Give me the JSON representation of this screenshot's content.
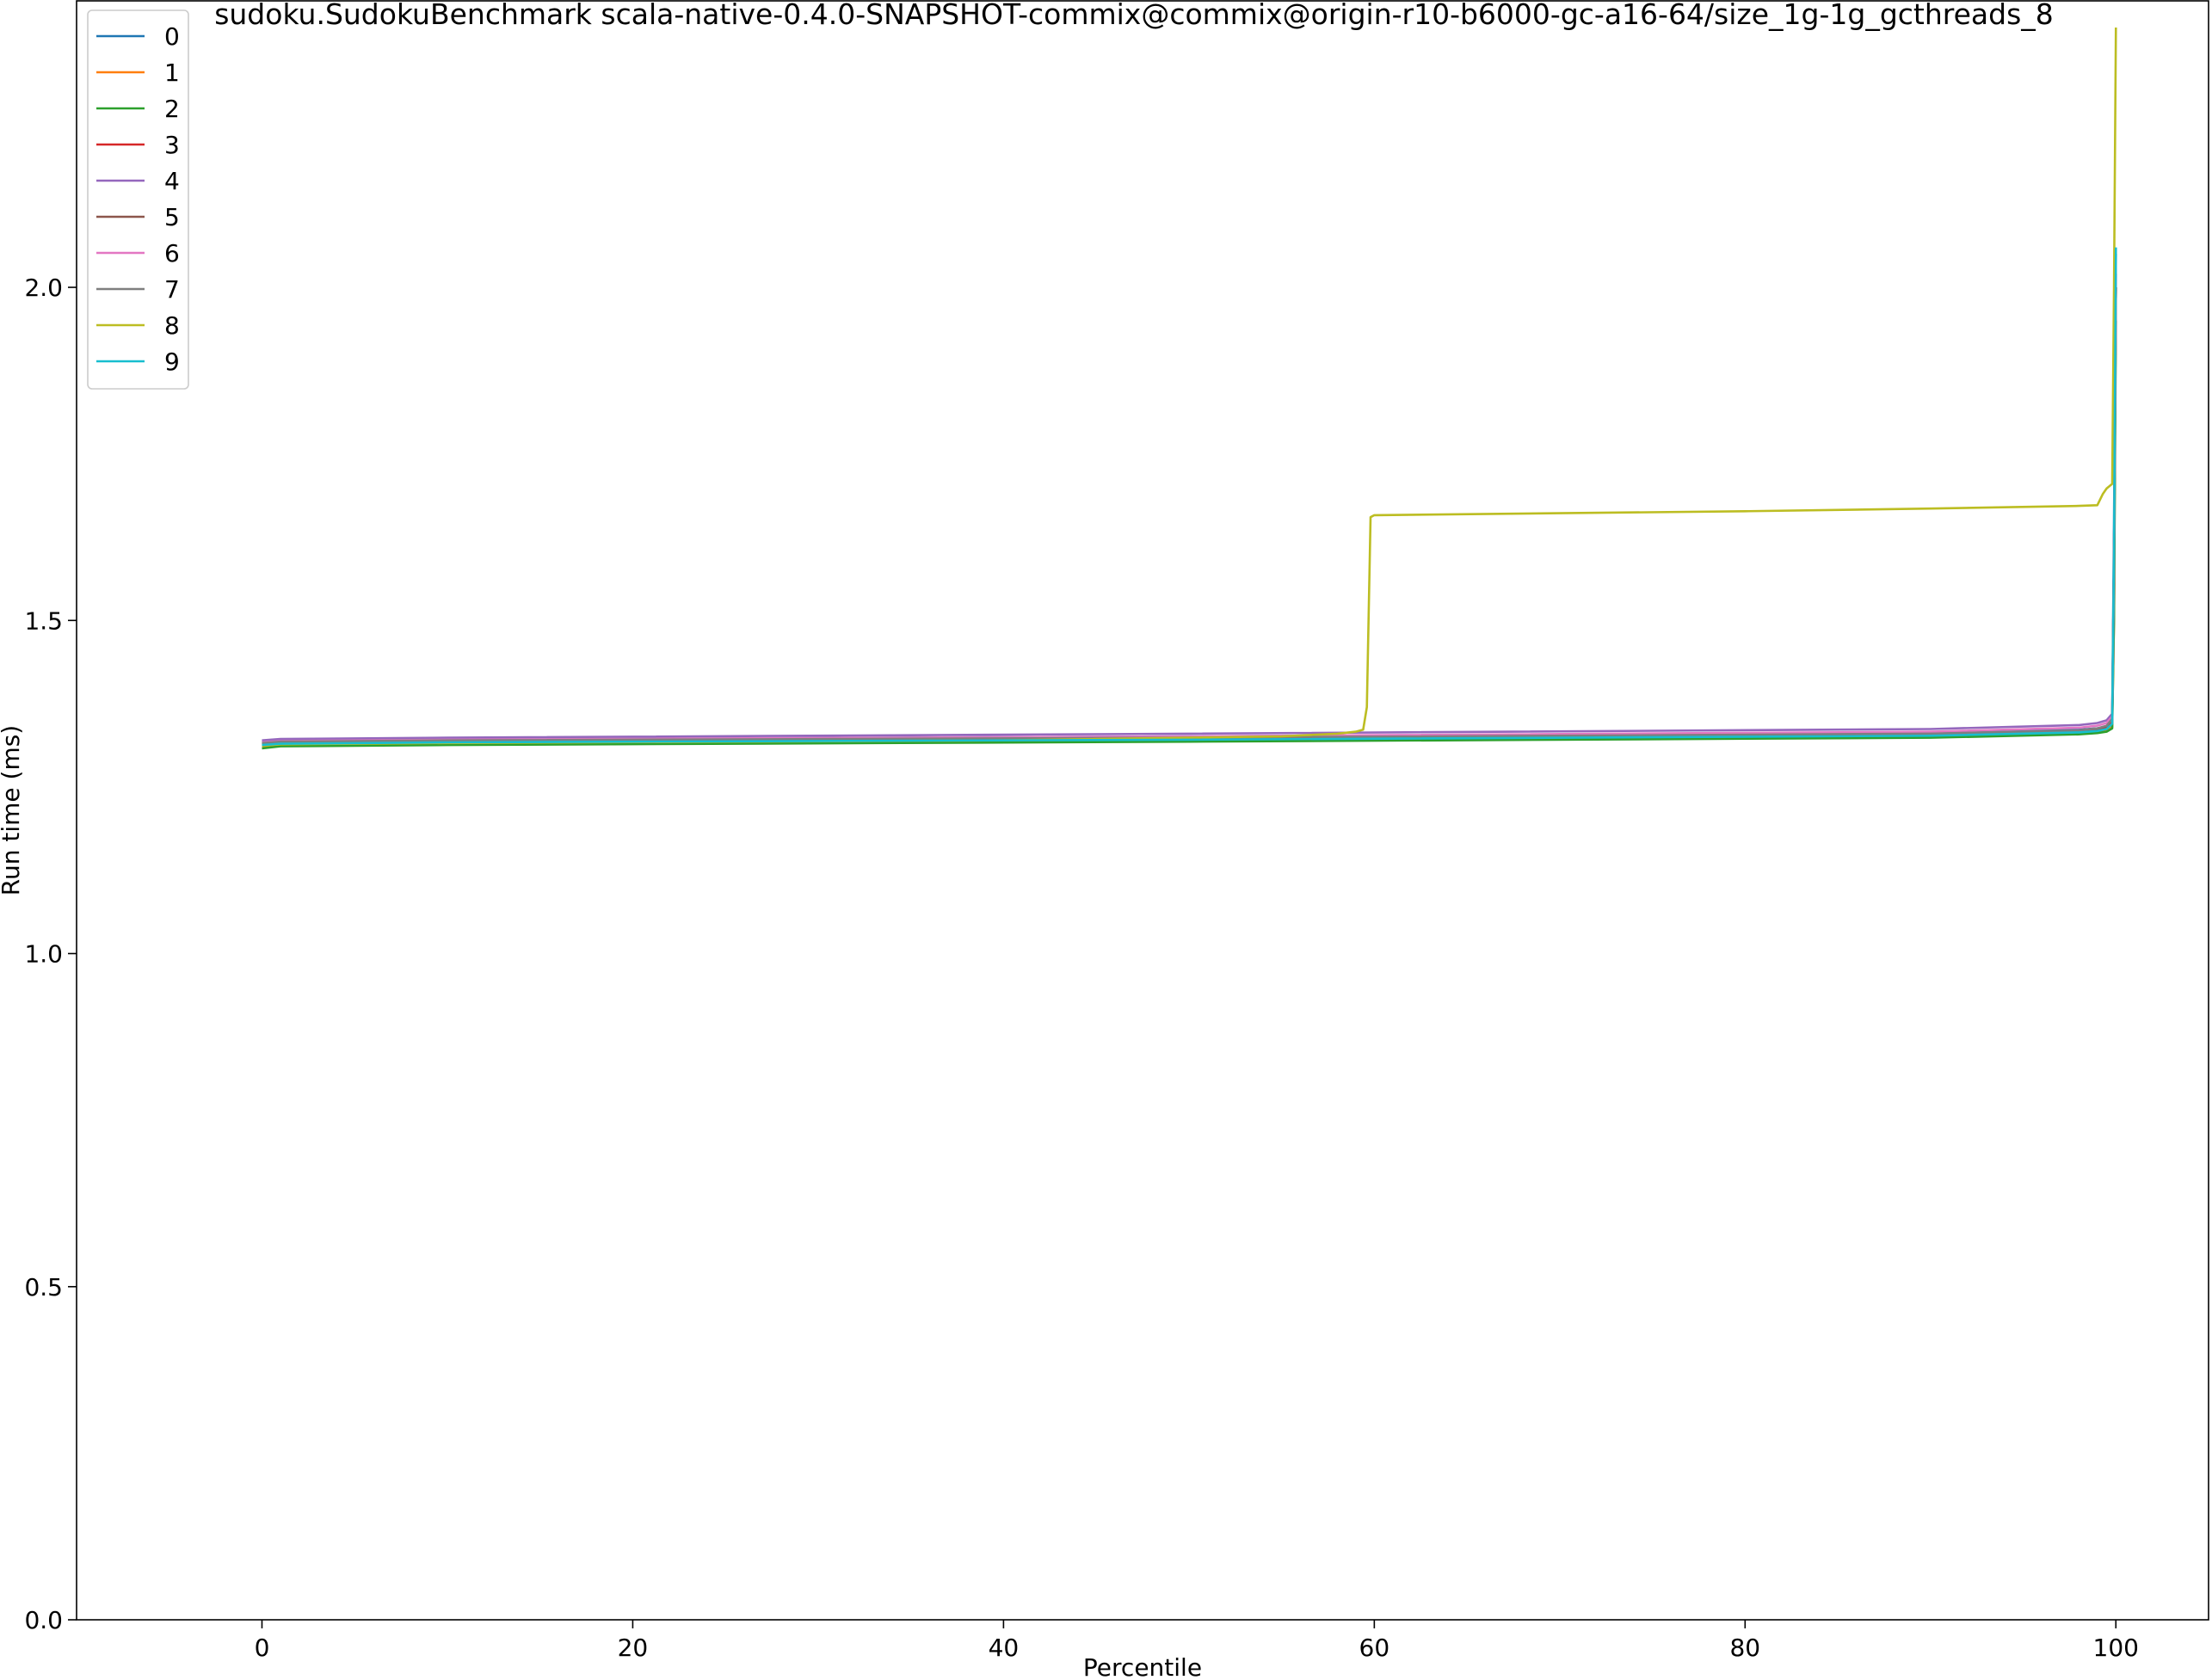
{
  "chart_data": {
    "type": "line",
    "title": "sudoku.SudokuBenchmark scala-native-0.4.0-SNAPSHOT-commix@commix@origin-r10-b6000-gc-a16-64/size_1g-1g_gcthreads_8",
    "xlabel": "Percentile",
    "ylabel": "Run time (ms)",
    "xlim": [
      -10,
      105
    ],
    "ylim": [
      0.0,
      2.43
    ],
    "xticks": [
      0,
      20,
      40,
      60,
      80,
      100
    ],
    "yticks": [
      0.0,
      0.5,
      1.0,
      1.5,
      2.0
    ],
    "xtick_labels": [
      "0",
      "20",
      "40",
      "60",
      "80",
      "100"
    ],
    "ytick_labels": [
      "0.0",
      "0.5",
      "1.0",
      "1.5",
      "2.0"
    ],
    "grid": false,
    "legend_position": "upper-left",
    "series": [
      {
        "name": "0",
        "color": "#1f77b4",
        "x": [
          0,
          1,
          10,
          50,
          90,
          98,
          99,
          99.5,
          99.8,
          99.9,
          100
        ],
        "y": [
          1.318,
          1.32,
          1.321,
          1.326,
          1.331,
          1.336,
          1.338,
          1.34,
          1.35,
          1.65,
          2.05
        ]
      },
      {
        "name": "1",
        "color": "#ff7f0e",
        "x": [
          0,
          1,
          10,
          50,
          90,
          98,
          99,
          99.5,
          99.8,
          99.9,
          100
        ],
        "y": [
          1.311,
          1.313,
          1.315,
          1.319,
          1.325,
          1.33,
          1.332,
          1.334,
          1.34,
          1.5,
          2.0
        ]
      },
      {
        "name": "2",
        "color": "#2ca02c",
        "x": [
          0,
          1,
          10,
          50,
          90,
          98,
          99,
          99.5,
          99.8,
          99.9,
          100
        ],
        "y": [
          1.308,
          1.311,
          1.313,
          1.318,
          1.324,
          1.329,
          1.331,
          1.333,
          1.338,
          1.5,
          1.95
        ]
      },
      {
        "name": "3",
        "color": "#d62728",
        "x": [
          0,
          1,
          10,
          50,
          90,
          98,
          99,
          99.5,
          99.8,
          99.9,
          100
        ],
        "y": [
          1.315,
          1.317,
          1.319,
          1.323,
          1.329,
          1.334,
          1.336,
          1.34,
          1.348,
          1.6,
          2.0
        ]
      },
      {
        "name": "4",
        "color": "#9467bd",
        "x": [
          0,
          1,
          10,
          50,
          90,
          98,
          99,
          99.5,
          99.8,
          99.9,
          100
        ],
        "y": [
          1.32,
          1.322,
          1.324,
          1.33,
          1.337,
          1.343,
          1.346,
          1.35,
          1.36,
          1.6,
          2.02
        ]
      },
      {
        "name": "5",
        "color": "#8c564b",
        "x": [
          0,
          1,
          10,
          50,
          90,
          98,
          99,
          99.5,
          99.8,
          99.9,
          100
        ],
        "y": [
          1.314,
          1.316,
          1.318,
          1.322,
          1.328,
          1.333,
          1.335,
          1.338,
          1.345,
          1.55,
          2.0
        ]
      },
      {
        "name": "6",
        "color": "#e377c2",
        "x": [
          0,
          1,
          10,
          50,
          90,
          98,
          99,
          99.5,
          99.8,
          99.9,
          100
        ],
        "y": [
          1.317,
          1.319,
          1.321,
          1.326,
          1.333,
          1.339,
          1.342,
          1.346,
          1.356,
          1.6,
          2.0
        ]
      },
      {
        "name": "7",
        "color": "#7f7f7f",
        "x": [
          0,
          1,
          10,
          50,
          90,
          98,
          99,
          99.5,
          99.8,
          99.9,
          100
        ],
        "y": [
          1.316,
          1.318,
          1.32,
          1.324,
          1.33,
          1.335,
          1.338,
          1.342,
          1.352,
          1.6,
          2.0
        ]
      },
      {
        "name": "8",
        "color": "#bcbd22",
        "x": [
          0,
          1,
          10,
          40,
          55,
          58,
          59,
          59.4,
          59.6,
          59.8,
          60,
          70,
          80,
          90,
          98,
          99,
          99.3,
          99.5,
          99.8,
          99.9,
          100
        ],
        "y": [
          1.312,
          1.314,
          1.316,
          1.32,
          1.326,
          1.33,
          1.333,
          1.336,
          1.37,
          1.655,
          1.658,
          1.661,
          1.664,
          1.668,
          1.672,
          1.673,
          1.69,
          1.698,
          1.705,
          2.0,
          2.39
        ]
      },
      {
        "name": "9",
        "color": "#17becf",
        "x": [
          0,
          1,
          10,
          50,
          90,
          98,
          99,
          99.5,
          99.8,
          99.9,
          100
        ],
        "y": [
          1.313,
          1.315,
          1.317,
          1.321,
          1.327,
          1.332,
          1.334,
          1.337,
          1.345,
          1.6,
          2.06
        ]
      }
    ]
  }
}
